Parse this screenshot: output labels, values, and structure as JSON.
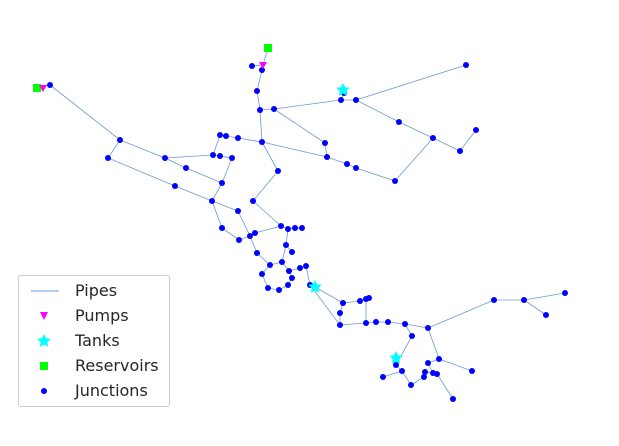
{
  "legend": {
    "items": [
      {
        "label": "Pipes",
        "kind": "line",
        "color": "#6b9bd2"
      },
      {
        "label": "Pumps",
        "kind": "triangle",
        "color": "#ff00ff"
      },
      {
        "label": "Tanks",
        "kind": "star",
        "color": "#00ffff"
      },
      {
        "label": "Reservoirs",
        "kind": "square",
        "color": "#00ff00"
      },
      {
        "label": "Junctions",
        "kind": "dot",
        "color": "#0000ff"
      }
    ]
  },
  "colors": {
    "pipe": "#6b9bd2",
    "junction": "#0000ff",
    "pump": "#ff00ff",
    "tank": "#00ffff",
    "reservoir": "#00ff00"
  }
}
